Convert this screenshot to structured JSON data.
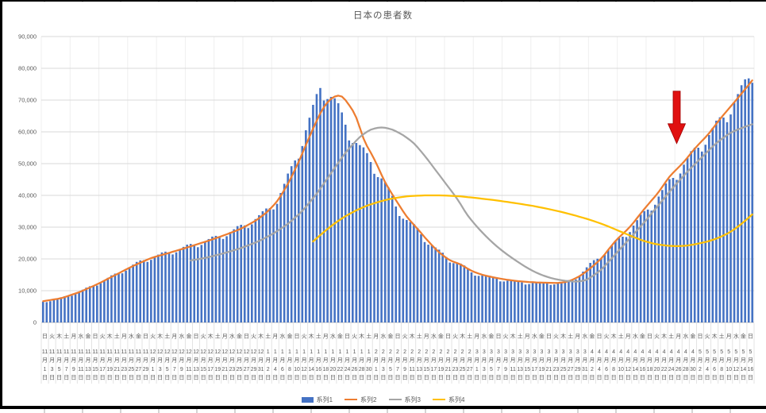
{
  "chart_data": {
    "type": "bar",
    "title": "日本の患者数",
    "legend_position": "bottom",
    "grid": true,
    "n_days": 198,
    "x_label_every_days": 2,
    "colors": {
      "bar": "#4472C4",
      "line2": "#ED7D31",
      "line3": "#A5A5A5",
      "line4": "#FFC000",
      "text": "#595959",
      "gridline": "#D9D9D9",
      "gridline_vertical": "#EFEFEF",
      "axis_line": "#BFBFBF",
      "annotation_red": "#E01010"
    },
    "y_axis": {
      "min": 0,
      "max": 90000,
      "step": 10000,
      "tick_labels": [
        "0",
        "10,000",
        "20,000",
        "30,000",
        "40,000",
        "50,000",
        "60,000",
        "70,000",
        "80,000",
        "90,000"
      ]
    },
    "x_axis": {
      "labels": [
        "日|11|1",
        "火|11|3",
        "木|11|5",
        "土|11|7",
        "月|11|9",
        "水|11|11",
        "金|11|13",
        "日|11|15",
        "火|11|17",
        "木|11|19",
        "土|11|21",
        "月|11|23",
        "水|11|25",
        "金|11|27",
        "日|11|29",
        "火|12|1",
        "木|12|3",
        "土|12|5",
        "月|12|7",
        "水|12|9",
        "金|12|11",
        "日|12|13",
        "火|12|15",
        "木|12|17",
        "土|12|19",
        "月|12|21",
        "水|12|23",
        "金|12|25",
        "日|12|27",
        "火|12|29",
        "木|12|31",
        "土|1|2",
        "月|1|4",
        "水|1|6",
        "金|1|8",
        "日|1|10",
        "火|1|12",
        "木|1|14",
        "土|1|16",
        "月|1|18",
        "水|1|20",
        "金|1|22",
        "日|1|24",
        "火|1|26",
        "木|1|28",
        "土|1|30",
        "月|2|1",
        "水|2|3",
        "金|2|5",
        "日|2|7",
        "火|2|9",
        "木|2|11",
        "土|2|13",
        "月|2|15",
        "水|2|17",
        "金|2|19",
        "日|2|21",
        "火|2|23",
        "木|2|25",
        "土|2|27",
        "月|3|1",
        "水|3|3",
        "金|3|5",
        "日|3|7",
        "火|3|9",
        "木|3|11",
        "土|3|13",
        "月|3|15",
        "水|3|17",
        "金|3|19",
        "日|3|21",
        "火|3|23",
        "木|3|25",
        "土|3|27",
        "月|3|29",
        "水|3|31",
        "金|4|2",
        "日|4|4",
        "火|4|6",
        "木|4|8",
        "土|4|10",
        "月|4|12",
        "水|4|14",
        "金|4|16",
        "日|4|18",
        "火|4|20",
        "木|4|22",
        "土|4|24",
        "月|4|26",
        "水|4|28",
        "金|4|30",
        "日|5|2",
        "火|5|4",
        "木|5|6",
        "土|5|8",
        "月|5|10",
        "水|5|12",
        "金|5|14",
        "日|5|16"
      ]
    },
    "weekday_factors": [
      1.0,
      0.955,
      0.97,
      1.0,
      1.015,
      1.03,
      1.025
    ],
    "series": [
      {
        "name": "系列1",
        "type": "bar",
        "color": "#4472C4",
        "anchors": [
          [
            0,
            6500
          ],
          [
            4,
            7300
          ],
          [
            9,
            9200
          ],
          [
            14,
            11600
          ],
          [
            19,
            14400
          ],
          [
            24,
            17400
          ],
          [
            28,
            19600
          ],
          [
            33,
            21400
          ],
          [
            38,
            23100
          ],
          [
            43,
            24800
          ],
          [
            48,
            26600
          ],
          [
            53,
            28900
          ],
          [
            57,
            31100
          ],
          [
            61,
            34000
          ],
          [
            63,
            36000
          ],
          [
            65,
            38500
          ],
          [
            67,
            43000
          ],
          [
            69,
            48000
          ],
          [
            71,
            54000
          ],
          [
            73,
            60500
          ],
          [
            75,
            66500
          ],
          [
            77,
            73800
          ],
          [
            79,
            72500
          ],
          [
            81,
            69500
          ],
          [
            83,
            64500
          ],
          [
            85,
            60000
          ],
          [
            87,
            56500
          ],
          [
            89,
            53500
          ],
          [
            92,
            49000
          ],
          [
            95,
            43500
          ],
          [
            98,
            36500
          ],
          [
            101,
            32250
          ],
          [
            104,
            29000
          ],
          [
            107,
            25250
          ],
          [
            110,
            22250
          ],
          [
            113,
            19750
          ],
          [
            116,
            18250
          ],
          [
            119,
            15750
          ],
          [
            122,
            14800
          ],
          [
            125,
            14000
          ],
          [
            128,
            13300
          ],
          [
            131,
            12800
          ],
          [
            134,
            12500
          ],
          [
            137,
            12400
          ],
          [
            140,
            12400
          ],
          [
            143,
            12300
          ],
          [
            146,
            13000
          ],
          [
            148,
            14200
          ],
          [
            150,
            16000
          ],
          [
            152,
            18200
          ],
          [
            155,
            21000
          ],
          [
            158,
            23800
          ],
          [
            161,
            27000
          ],
          [
            164,
            30500
          ],
          [
            167,
            34200
          ],
          [
            170,
            38200
          ],
          [
            173,
            42500
          ],
          [
            176,
            47000
          ],
          [
            179,
            51000
          ],
          [
            182,
            55000
          ],
          [
            185,
            59000
          ],
          [
            188,
            63000
          ],
          [
            191,
            67500
          ],
          [
            194,
            72500
          ],
          [
            197,
            79000
          ]
        ]
      },
      {
        "name": "系列2",
        "type": "line",
        "color": "#ED7D31",
        "anchors": [
          [
            0,
            6700
          ],
          [
            5,
            7600
          ],
          [
            10,
            9500
          ],
          [
            15,
            12000
          ],
          [
            20,
            14900
          ],
          [
            25,
            17800
          ],
          [
            30,
            20300
          ],
          [
            35,
            21900
          ],
          [
            40,
            23600
          ],
          [
            45,
            25400
          ],
          [
            50,
            27300
          ],
          [
            55,
            29500
          ],
          [
            59,
            32000
          ],
          [
            62,
            34500
          ],
          [
            65,
            38000
          ],
          [
            68,
            43500
          ],
          [
            71,
            50500
          ],
          [
            74,
            58500
          ],
          [
            77,
            66000
          ],
          [
            79,
            69500
          ],
          [
            81,
            71300
          ],
          [
            83,
            71500
          ],
          [
            85,
            68500
          ],
          [
            87,
            65000
          ],
          [
            89,
            57500
          ],
          [
            92,
            51500
          ],
          [
            95,
            44000
          ],
          [
            98,
            38500
          ],
          [
            101,
            33250
          ],
          [
            104,
            29500
          ],
          [
            107,
            25500
          ],
          [
            110,
            22000
          ],
          [
            113,
            19500
          ],
          [
            116,
            18300
          ],
          [
            119,
            16200
          ],
          [
            122,
            15000
          ],
          [
            125,
            14200
          ],
          [
            128,
            13600
          ],
          [
            131,
            13100
          ],
          [
            134,
            12800
          ],
          [
            137,
            12600
          ],
          [
            140,
            12500
          ],
          [
            143,
            12400
          ],
          [
            146,
            12900
          ],
          [
            149,
            14500
          ],
          [
            152,
            17000
          ],
          [
            155,
            20000
          ],
          [
            159,
            25750
          ],
          [
            163,
            30000
          ],
          [
            167,
            35750
          ],
          [
            171,
            41000
          ],
          [
            174,
            46000
          ],
          [
            178,
            50500
          ],
          [
            181,
            54750
          ],
          [
            185,
            59500
          ],
          [
            188,
            64000
          ],
          [
            191,
            68000
          ],
          [
            194,
            72000
          ],
          [
            197,
            76200
          ]
        ]
      },
      {
        "name": "系列3",
        "type": "line",
        "color": "#A5A5A5",
        "anchors": [
          [
            41,
            19500
          ],
          [
            45,
            20300
          ],
          [
            50,
            21700
          ],
          [
            55,
            23400
          ],
          [
            60,
            25600
          ],
          [
            64,
            28000
          ],
          [
            68,
            31000
          ],
          [
            72,
            35000
          ],
          [
            76,
            40500
          ],
          [
            80,
            47000
          ],
          [
            84,
            53500
          ],
          [
            88,
            58500
          ],
          [
            91,
            60800
          ],
          [
            94,
            61500
          ],
          [
            97,
            60800
          ],
          [
            100,
            59000
          ],
          [
            103,
            56500
          ],
          [
            106,
            52500
          ],
          [
            109,
            48000
          ],
          [
            112,
            43500
          ],
          [
            115,
            39000
          ],
          [
            118,
            33500
          ],
          [
            121,
            29500
          ],
          [
            124,
            26000
          ],
          [
            127,
            23000
          ],
          [
            130,
            20500
          ],
          [
            133,
            18200
          ],
          [
            136,
            16200
          ],
          [
            139,
            14700
          ],
          [
            142,
            13700
          ],
          [
            145,
            13100
          ],
          [
            148,
            12800
          ],
          [
            151,
            13300
          ],
          [
            155,
            16500
          ],
          [
            159,
            21500
          ],
          [
            163,
            26500
          ],
          [
            167,
            31500
          ],
          [
            171,
            37000
          ],
          [
            175,
            42500
          ],
          [
            179,
            47500
          ],
          [
            183,
            52000
          ],
          [
            187,
            56500
          ],
          [
            191,
            59800
          ],
          [
            194,
            61200
          ],
          [
            197,
            62400
          ]
        ]
      },
      {
        "name": "系列4",
        "type": "line",
        "color": "#FFC000",
        "anchors": [
          [
            75,
            25500
          ],
          [
            78,
            28500
          ],
          [
            81,
            31200
          ],
          [
            84,
            33500
          ],
          [
            87,
            35300
          ],
          [
            90,
            36800
          ],
          [
            93,
            37900
          ],
          [
            96,
            38800
          ],
          [
            99,
            39400
          ],
          [
            102,
            39800
          ],
          [
            106,
            40000
          ],
          [
            111,
            40000
          ],
          [
            116,
            39700
          ],
          [
            121,
            39100
          ],
          [
            126,
            38400
          ],
          [
            131,
            37600
          ],
          [
            136,
            36700
          ],
          [
            140,
            35800
          ],
          [
            144,
            34800
          ],
          [
            148,
            33600
          ],
          [
            152,
            32300
          ],
          [
            156,
            30700
          ],
          [
            160,
            28800
          ],
          [
            164,
            26900
          ],
          [
            167,
            25600
          ],
          [
            170,
            24700
          ],
          [
            173,
            24200
          ],
          [
            176,
            24000
          ],
          [
            179,
            24200
          ],
          [
            182,
            24800
          ],
          [
            185,
            25600
          ],
          [
            188,
            26800
          ],
          [
            191,
            28500
          ],
          [
            194,
            31000
          ],
          [
            197,
            34000
          ]
        ]
      }
    ],
    "annotation": {
      "shape": "down-arrow",
      "color": "#E01010",
      "edge_color": "#A00000",
      "day_index": 176,
      "value_top": 72800,
      "value_tip": 56300,
      "shaft_half_width": 4.5,
      "head_half_width": 11,
      "head_height": 25
    }
  }
}
